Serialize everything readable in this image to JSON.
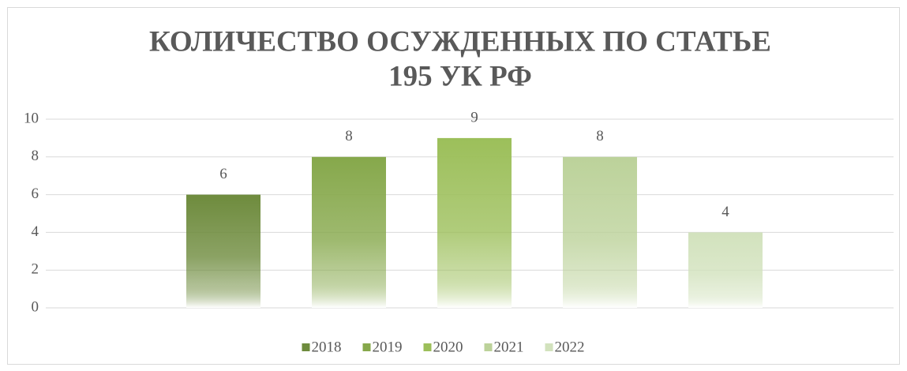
{
  "chart_data": {
    "type": "bar",
    "title": [
      "КОЛИЧЕСТВО ОСУЖДЕННЫХ ПО СТАТЬЕ",
      "195 УК РФ"
    ],
    "categories": [
      null
    ],
    "series": [
      {
        "name": "2018",
        "color": "#6e8b3d",
        "values": [
          6
        ]
      },
      {
        "name": "2019",
        "color": "#86a84b",
        "values": [
          8
        ]
      },
      {
        "name": "2020",
        "color": "#9cbf5a",
        "values": [
          9
        ]
      },
      {
        "name": "2021",
        "color": "#bcd29a",
        "values": [
          8
        ]
      },
      {
        "name": "2022",
        "color": "#d2e2bd",
        "values": [
          4
        ]
      }
    ],
    "ylim": [
      0,
      10
    ],
    "yticks": [
      0,
      2,
      4,
      6,
      8,
      10
    ],
    "grid": true,
    "legend": "bottom"
  }
}
